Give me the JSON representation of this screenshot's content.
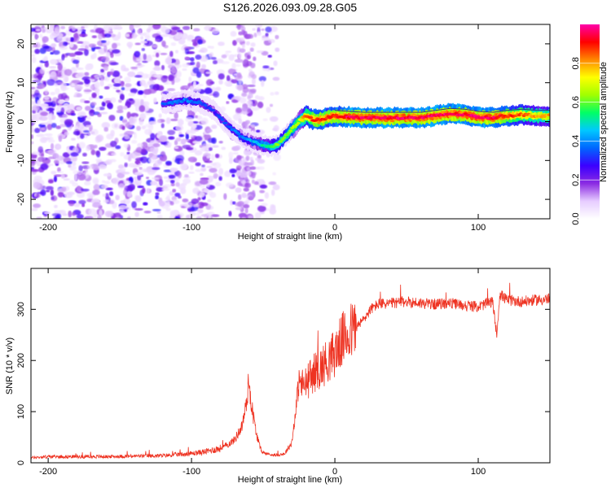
{
  "figure": {
    "title": "S126.2026.093.09.28.G05"
  },
  "colorbar": {
    "label": "Normalized spectral amplitude",
    "range": [
      0,
      1.0
    ],
    "ticks": [
      "0.0",
      "0.2",
      "0.4",
      "0.6",
      "0.8"
    ],
    "tick_values": [
      0.0,
      0.2,
      0.4,
      0.6,
      0.8
    ],
    "colormap_stops": [
      "#ffffff",
      "#e6ccff",
      "#8b2be2",
      "#3b00ff",
      "#0066ff",
      "#00c8ff",
      "#00ff66",
      "#a0ff00",
      "#ffff00",
      "#ff8800",
      "#ff0000",
      "#ff00aa"
    ]
  },
  "chart_data": [
    {
      "type": "heatmap",
      "title": "S126.2026.093.09.28.G05",
      "xlabel": "Height of straight line (km)",
      "ylabel": "Frequency (Hz)",
      "xlim": [
        -212,
        150
      ],
      "ylim": [
        -25,
        25
      ],
      "x_ticks": [
        -200,
        -100,
        0,
        100
      ],
      "x_tick_labels": [
        "-200",
        "-100",
        "0",
        "100"
      ],
      "y_ticks": [
        -20,
        -10,
        0,
        10,
        20
      ],
      "y_tick_labels": [
        "-20",
        "-10",
        "0",
        "10",
        "20"
      ],
      "ridge": {
        "x": [
          -120,
          -105,
          -95,
          -85,
          -75,
          -65,
          -55,
          -45,
          -40,
          -35,
          -30,
          -25,
          -20,
          -15,
          -10,
          -5,
          0,
          10,
          20,
          40,
          60,
          70,
          80,
          90,
          100,
          110,
          120,
          130,
          140,
          150
        ],
        "y": [
          4.5,
          5.5,
          5.0,
          3.0,
          -1.0,
          -4.0,
          -5.5,
          -6.5,
          -6.0,
          -4.0,
          -2.0,
          0.0,
          1.5,
          0.5,
          0.5,
          1.0,
          1.5,
          1.2,
          1.0,
          1.0,
          1.0,
          1.5,
          2.0,
          1.8,
          1.2,
          1.0,
          1.5,
          1.8,
          1.5,
          1.5
        ],
        "amplitude": [
          0.35,
          0.4,
          0.35,
          0.3,
          0.35,
          0.4,
          0.45,
          0.55,
          0.6,
          0.6,
          0.65,
          0.7,
          0.85,
          0.9,
          0.9,
          0.9,
          0.9,
          0.95,
          0.95,
          0.95,
          0.95,
          0.95,
          0.95,
          0.95,
          0.95,
          0.95,
          0.9,
          0.85,
          0.8,
          0.8
        ]
      },
      "noise_region": {
        "x": [
          -212,
          -40
        ],
        "amplitude": [
          0.05,
          0.3
        ]
      }
    },
    {
      "type": "line",
      "xlabel": "Height of straight line (km)",
      "ylabel": "SNR (10 * v/v)",
      "xlim": [
        -212,
        150
      ],
      "ylim": [
        0,
        380
      ],
      "x_ticks": [
        -200,
        -100,
        0,
        100
      ],
      "x_tick_labels": [
        "-200",
        "-100",
        "0",
        "100"
      ],
      "y_ticks": [
        0,
        100,
        200,
        300
      ],
      "y_tick_labels": [
        "0",
        "100",
        "200",
        "300"
      ],
      "color": "#ee3322",
      "series": [
        {
          "name": "SNR",
          "x": [
            -212,
            -200,
            -180,
            -160,
            -140,
            -120,
            -110,
            -100,
            -90,
            -80,
            -75,
            -70,
            -65,
            -62,
            -60,
            -58,
            -55,
            -52,
            -50,
            -45,
            -40,
            -35,
            -30,
            -27,
            -25,
            -22,
            -20,
            -15,
            -10,
            -5,
            0,
            5,
            10,
            15,
            20,
            25,
            30,
            40,
            50,
            60,
            70,
            80,
            90,
            100,
            110,
            113,
            115,
            120,
            130,
            140,
            150
          ],
          "y": [
            10,
            12,
            12,
            12,
            13,
            14,
            16,
            18,
            22,
            28,
            35,
            45,
            70,
            110,
            160,
            110,
            60,
            28,
            20,
            16,
            15,
            18,
            40,
            110,
            160,
            150,
            155,
            175,
            185,
            200,
            215,
            240,
            255,
            265,
            280,
            300,
            310,
            312,
            315,
            312,
            310,
            312,
            308,
            305,
            315,
            250,
            330,
            318,
            315,
            318,
            320
          ]
        }
      ]
    }
  ]
}
